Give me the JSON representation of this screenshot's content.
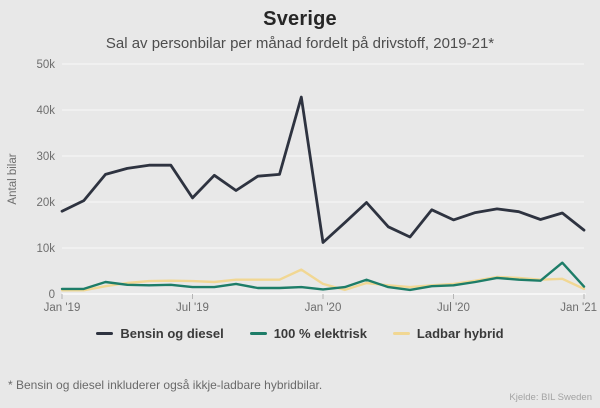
{
  "header": {
    "title": "Sverige",
    "subtitle": "Sal av personbilar per månad fordelt på drivstoff, 2019-21*"
  },
  "chart_data": {
    "type": "line",
    "x": [
      "Jan '19",
      "Feb '19",
      "Mar '19",
      "Apr '19",
      "May '19",
      "Jun '19",
      "Jul '19",
      "Aug '19",
      "Sep '19",
      "Oct '19",
      "Nov '19",
      "Dec '19",
      "Jan '20",
      "Feb '20",
      "Mar '20",
      "Apr '20",
      "May '20",
      "Jun '20",
      "Jul '20",
      "Aug '20",
      "Sep '20",
      "Oct '20",
      "Nov '20",
      "Dec '20",
      "Jan '21"
    ],
    "x_tick_indices": [
      0,
      6,
      12,
      18,
      24
    ],
    "x_tick_labels": [
      "Jan '19",
      "Jul '19",
      "Jan '20",
      "Jul '20",
      "Jan '21"
    ],
    "ylabel": "Antal bilar",
    "ylim": [
      0,
      50000
    ],
    "ytick_step": 10000,
    "ytick_labels": [
      "0",
      "10k",
      "20k",
      "30k",
      "40k",
      "50k"
    ],
    "grid": true,
    "legend_position": "bottom",
    "series": [
      {
        "name": "Bensin og diesel",
        "color": "#2e3340",
        "values": [
          18000,
          20300,
          26000,
          27300,
          28000,
          28000,
          20900,
          25800,
          22500,
          25600,
          26000,
          42800,
          11200,
          15500,
          19900,
          14600,
          12400,
          18300,
          16100,
          17700,
          18500,
          17900,
          16200,
          17600,
          13900
        ]
      },
      {
        "name": "100 % elektrisk",
        "color": "#1d7d68",
        "values": [
          1100,
          1100,
          2600,
          2000,
          1900,
          2000,
          1500,
          1500,
          2200,
          1300,
          1300,
          1500,
          1000,
          1500,
          3100,
          1500,
          900,
          1700,
          1900,
          2600,
          3500,
          3100,
          2900,
          6800,
          1600
        ]
      },
      {
        "name": "Ladbar hybrid",
        "color": "#f1d793",
        "values": [
          800,
          800,
          1700,
          2400,
          2800,
          2900,
          2800,
          2600,
          3100,
          3100,
          3100,
          5300,
          2200,
          900,
          2400,
          1900,
          1500,
          1900,
          2200,
          2900,
          3700,
          3500,
          3100,
          3300,
          1100
        ]
      }
    ]
  },
  "footer": {
    "note": "* Bensin og diesel inkluderer også ikkje-ladbare hybridbilar.",
    "source": "Kjelde: BIL Sweden"
  }
}
